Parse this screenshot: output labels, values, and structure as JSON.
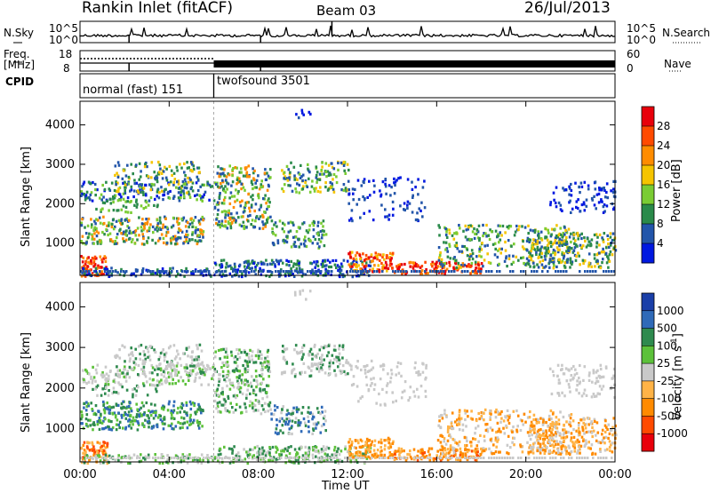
{
  "header": {
    "station": "Rankin Inlet (fitACF)",
    "beam": "Beam 03",
    "date": "26/Jul/2013"
  },
  "noise_panel": {
    "left_label": "N.Sky",
    "right_label": "N.Search",
    "left_ticks": [
      "10^5",
      "10^0"
    ],
    "right_ticks": [
      "10^5",
      "10^0"
    ]
  },
  "freq_panel": {
    "left_label_1": "Freq.",
    "left_label_2": "[MHz]",
    "right_label": "Nave",
    "left_ticks": [
      "18",
      "8"
    ],
    "right_ticks": [
      "60",
      "0"
    ]
  },
  "cpid_panel": {
    "label": "CPID",
    "modes": [
      {
        "name": "normal (fast) 151",
        "start_hour": 0,
        "end_hour": 6
      },
      {
        "name": "twofsound 3501",
        "start_hour": 6,
        "end_hour": 24
      }
    ]
  },
  "chart_data": [
    {
      "type": "heatmap",
      "panel": "power",
      "ylabel": "Slant Range [km]",
      "xlabel": "",
      "x_range_hours": [
        0,
        24
      ],
      "y_ticks": [
        1000,
        2000,
        3000,
        4000
      ],
      "ylim": [
        180,
        4600
      ],
      "colorbar": {
        "label": "Power [dB]",
        "ticks": [
          "28",
          "24",
          "20",
          "16",
          "12",
          "8",
          "4"
        ],
        "colors": [
          "#e8000b",
          "#ff4a00",
          "#ff8c00",
          "#f5c400",
          "#7acc33",
          "#2a8a4a",
          "#2255aa",
          "#0018e0"
        ]
      }
    },
    {
      "type": "heatmap",
      "panel": "velocity",
      "ylabel": "Slant Range [km]",
      "xlabel": "Time UT",
      "x_range_hours": [
        0,
        24
      ],
      "x_ticks": [
        "00:00",
        "04:00",
        "08:00",
        "12:00",
        "16:00",
        "20:00",
        "00:00"
      ],
      "y_ticks": [
        1000,
        2000,
        3000,
        4000
      ],
      "ylim": [
        180,
        4600
      ],
      "colorbar": {
        "label": "Velocity [m s",
        "label_sup": "-1",
        "label_end": "]",
        "ticks": [
          "1000",
          "500",
          "100",
          "25",
          "-25",
          "-100",
          "-500",
          "-1000"
        ],
        "colors": [
          "#1a3fa8",
          "#2f6ab8",
          "#2e8a4e",
          "#5cc13a",
          "#c9c9c9",
          "#ffb347",
          "#ff8a00",
          "#ff4a00",
          "#e8000b"
        ]
      }
    }
  ]
}
